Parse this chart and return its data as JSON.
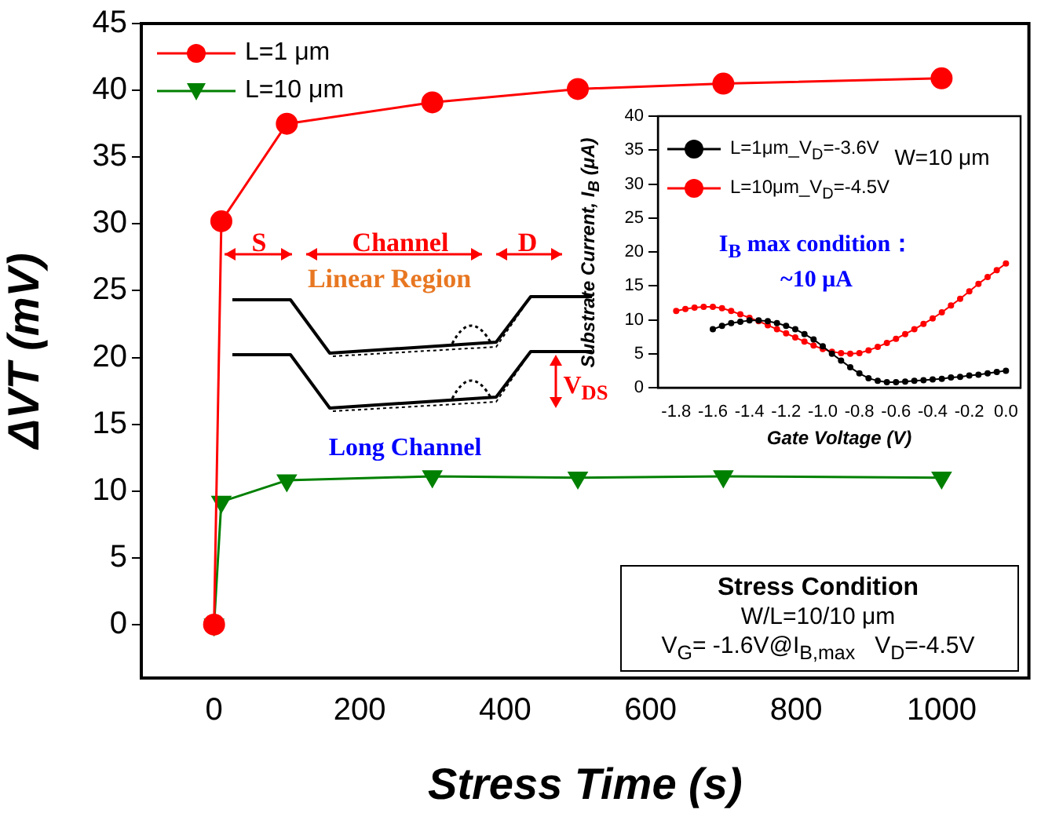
{
  "chart_data": [
    {
      "type": "line",
      "xlabel": "Stress Time (s)",
      "ylabel": "ΔVT (mV)",
      "x": [
        0,
        10,
        100,
        300,
        500,
        700,
        1000
      ],
      "xlim": [
        -100,
        1120
      ],
      "ylim": [
        -4,
        45
      ],
      "xticks": [
        0,
        200,
        400,
        600,
        800,
        1000
      ],
      "yticks": [
        0,
        5,
        10,
        15,
        20,
        25,
        30,
        35,
        40,
        45
      ],
      "legend": "top left",
      "series": [
        {
          "name": "L=1 μm",
          "color": "#ff0000",
          "marker": "circle",
          "values": [
            0,
            30.2,
            37.5,
            39.1,
            40.1,
            40.5,
            40.9
          ]
        },
        {
          "name": "L=10 μm",
          "color": "#008000",
          "marker": "triangle",
          "values": [
            0,
            9.2,
            10.8,
            11.1,
            11.0,
            11.1,
            11.0
          ]
        }
      ],
      "annotations": [
        "S",
        "Channel",
        "D",
        "Linear Region",
        "V$_{DS}$",
        "Long Channel",
        "Stress Condition",
        "W/L=10/10 μm",
        "V$_{G}$= -1.6V@I$_{B,max}$   V$_{D}$=-4.5V"
      ]
    },
    {
      "type": "line",
      "xlabel": "Gate Voltage (V)",
      "ylabel": "Substrate Current, I$_{B}$ (μA)",
      "xlim": [
        -1.9,
        0.08
      ],
      "ylim": [
        0,
        40
      ],
      "xticks": [
        -1.8,
        -1.6,
        -1.4,
        -1.2,
        {
          "value": -1.0,
          "label": "-1.0"
        },
        -0.8,
        -0.6,
        -0.4,
        -0.2,
        {
          "value": 0,
          "label": "0.0"
        }
      ],
      "yticks": [
        0,
        5,
        10,
        15,
        20,
        25,
        30,
        35,
        40
      ],
      "legend": "top left",
      "series": [
        {
          "name": "L=1μm_V$_{D}$=-3.6V",
          "color": "#000000",
          "marker": "circle",
          "x": [
            -1.6,
            -1.55,
            -1.5,
            -1.45,
            -1.4,
            -1.35,
            -1.3,
            -1.25,
            -1.2,
            -1.15,
            -1.1,
            -1.05,
            -1.0,
            -0.95,
            -0.9,
            -0.85,
            -0.8,
            -0.75,
            -0.7,
            -0.65,
            -0.6,
            -0.55,
            -0.5,
            -0.45,
            -0.4,
            -0.35,
            -0.3,
            -0.25,
            -0.2,
            -0.15,
            -0.1,
            -0.05,
            0
          ],
          "values": [
            8.6,
            9.1,
            9.5,
            9.7,
            9.9,
            9.9,
            9.8,
            9.5,
            9.1,
            8.6,
            7.9,
            7.1,
            6.1,
            5.0,
            4.0,
            3.0,
            2.1,
            1.4,
            1.0,
            0.8,
            0.8,
            0.9,
            1.0,
            1.1,
            1.2,
            1.3,
            1.5,
            1.6,
            1.8,
            1.9,
            2.1,
            2.3,
            2.5
          ]
        },
        {
          "name": "L=10μm_V$_{D}$=-4.5V",
          "color": "#ff0000",
          "marker": "circle",
          "x": [
            -1.8,
            -1.75,
            -1.7,
            -1.65,
            -1.6,
            -1.55,
            -1.5,
            -1.45,
            -1.4,
            -1.35,
            -1.3,
            -1.25,
            -1.2,
            -1.15,
            -1.1,
            -1.05,
            -1.0,
            -0.95,
            -0.9,
            -0.85,
            -0.8,
            -0.75,
            -0.7,
            -0.65,
            -0.6,
            -0.55,
            -0.5,
            -0.45,
            -0.4,
            -0.35,
            -0.3,
            -0.25,
            -0.2,
            -0.15,
            -0.1,
            -0.05,
            0
          ],
          "values": [
            11.3,
            11.6,
            11.8,
            11.9,
            11.9,
            11.7,
            11.3,
            10.8,
            10.3,
            9.8,
            9.2,
            8.6,
            8.0,
            7.4,
            6.8,
            6.2,
            5.7,
            5.3,
            5.1,
            5.0,
            5.1,
            5.5,
            6.0,
            6.6,
            7.2,
            7.9,
            8.6,
            9.4,
            10.2,
            11.1,
            12.1,
            13.1,
            14.2,
            15.3,
            16.3,
            17.3,
            18.3
          ]
        }
      ],
      "annotations": [
        "W=10 μm",
        "I$_{B}$ max condition：",
        "~10 μA"
      ]
    }
  ]
}
